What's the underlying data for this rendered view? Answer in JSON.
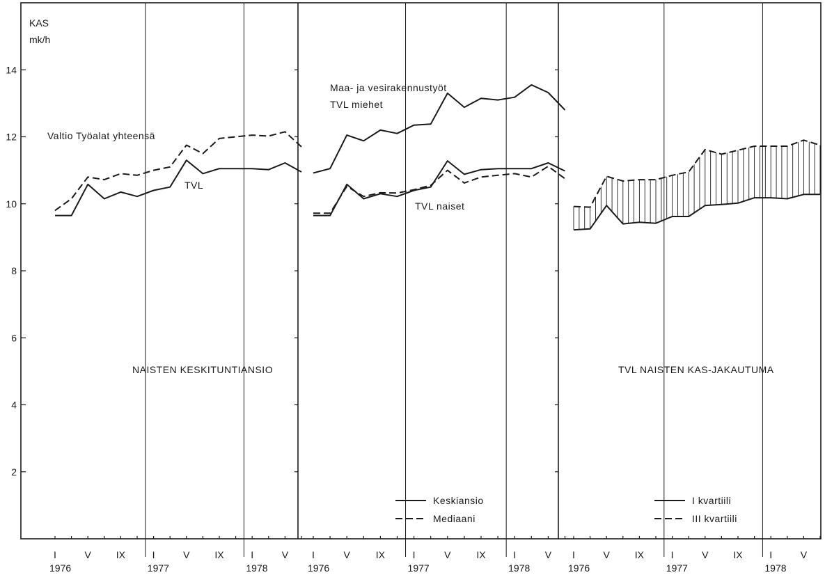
{
  "chart_data": {
    "type": "line",
    "y_axis": {
      "label_line1": "KAS",
      "label_line2": "mk/h",
      "ylim": [
        0,
        16
      ],
      "ticks": [
        2,
        4,
        6,
        8,
        10,
        12,
        14
      ]
    },
    "x_month_labels": [
      "I",
      "V",
      "IX",
      "I",
      "V",
      "IX",
      "I",
      "V"
    ],
    "x_year_labels": [
      "1976",
      "1977",
      "1978"
    ],
    "panels": [
      {
        "title": "NAISTEN KESKITUNTIANSIO",
        "series": [
          {
            "name": "Valtio Työalat yhteensä",
            "style": "dashed",
            "values": [
              9.8,
              10.15,
              10.8,
              10.72,
              10.9,
              10.85,
              11.0,
              11.1,
              11.75,
              11.5,
              11.95,
              12.0,
              12.05,
              12.02,
              12.15,
              11.7
            ]
          },
          {
            "name": "TVL",
            "style": "solid",
            "values": [
              9.65,
              9.65,
              10.58,
              10.15,
              10.35,
              10.22,
              10.4,
              10.5,
              11.3,
              10.9,
              11.05,
              11.05,
              11.05,
              11.02,
              11.22,
              10.95
            ]
          }
        ]
      },
      {
        "title": "",
        "legend": [
          "Keskiansio",
          "Mediaani"
        ],
        "series": [
          {
            "name": "Maa- ja vesirakennustyöt",
            "name2": "TVL  miehet",
            "style": "solid",
            "values": [
              10.92,
              11.05,
              12.05,
              11.88,
              12.2,
              12.1,
              12.35,
              12.38,
              13.3,
              12.88,
              13.15,
              13.1,
              13.18,
              13.55,
              13.32,
              12.8
            ]
          },
          {
            "name": "TVL  naiset",
            "style": "solid",
            "values": [
              9.65,
              9.65,
              10.58,
              10.15,
              10.3,
              10.22,
              10.4,
              10.5,
              11.28,
              10.88,
              11.02,
              11.05,
              11.05,
              11.05,
              11.22,
              10.98
            ]
          },
          {
            "name": "",
            "style": "dashed",
            "values": [
              9.72,
              9.72,
              10.52,
              10.22,
              10.33,
              10.32,
              10.42,
              10.55,
              11.0,
              10.62,
              10.8,
              10.85,
              10.9,
              10.8,
              11.12,
              10.75
            ]
          }
        ]
      },
      {
        "title": "TVL   NAISTEN  KAS-JAKAUTUMA",
        "legend": [
          "I  kvartiili",
          "III  kvartiili"
        ],
        "series": [
          {
            "name": "I kvartiili",
            "style": "solid",
            "values": [
              9.22,
              9.25,
              9.95,
              9.4,
              9.45,
              9.42,
              9.62,
              9.62,
              9.95,
              9.98,
              10.02,
              10.18,
              10.18,
              10.15,
              10.28,
              10.28
            ]
          },
          {
            "name": "III kvartiili",
            "style": "dashed",
            "values": [
              9.92,
              9.9,
              10.82,
              10.68,
              10.72,
              10.72,
              10.85,
              10.95,
              11.62,
              11.48,
              11.6,
              11.72,
              11.72,
              11.72,
              11.9,
              11.75
            ]
          }
        ]
      }
    ]
  }
}
